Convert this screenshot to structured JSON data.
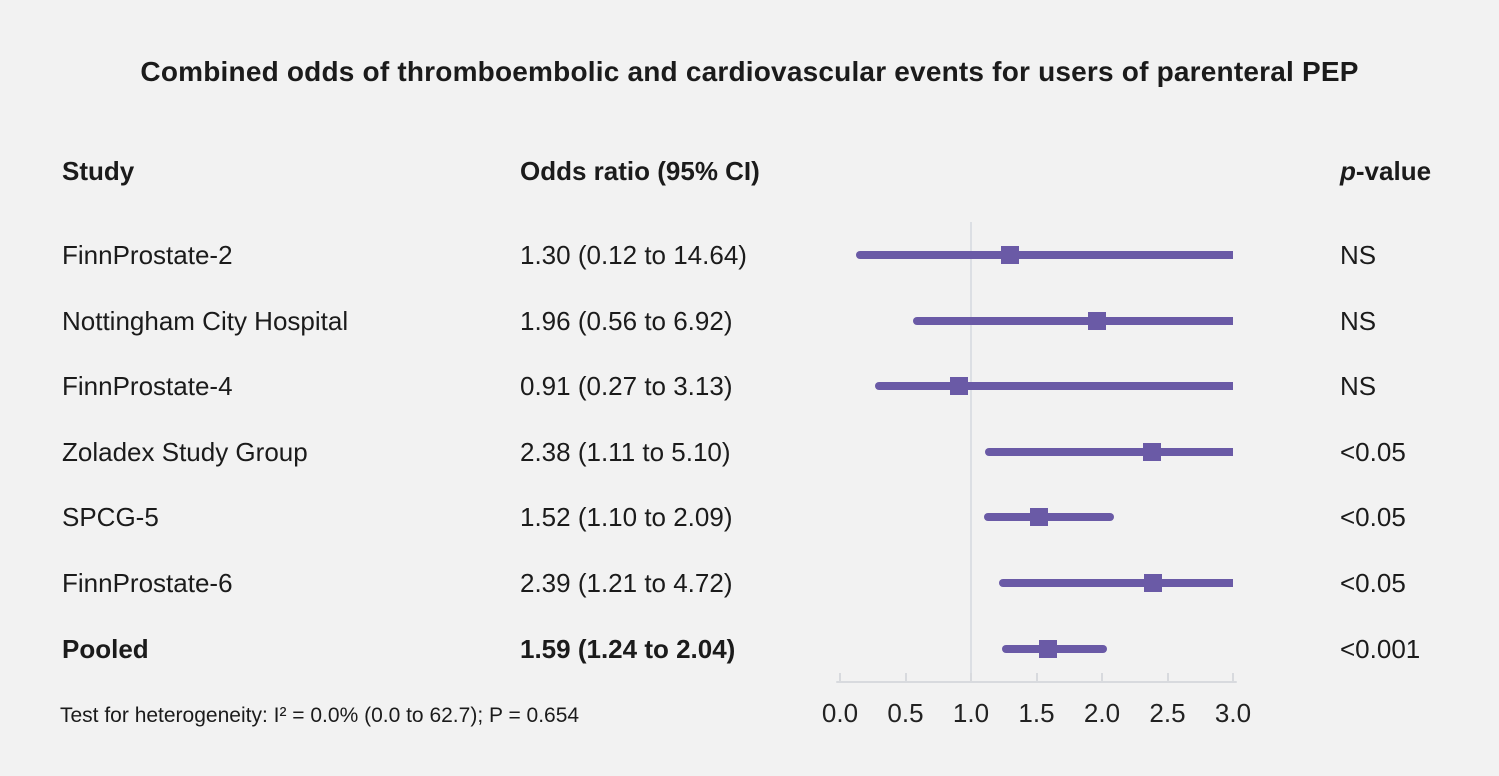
{
  "title": "Combined odds of thromboembolic and cardiovascular events for users of parenteral PEP",
  "columns": {
    "study": "Study",
    "or_ci": "Odds ratio (95% CI)",
    "p_italic": "p",
    "p_rest": "-value"
  },
  "rows": [
    {
      "study": "FinnProstate-2",
      "or_ci": "1.30 (0.12 to 14.64)",
      "p": "NS"
    },
    {
      "study": "Nottingham City Hospital",
      "or_ci": "1.96 (0.56 to 6.92)",
      "p": "NS"
    },
    {
      "study": "FinnProstate-4",
      "or_ci": "0.91 (0.27 to 3.13)",
      "p": "NS"
    },
    {
      "study": "Zoladex Study Group",
      "or_ci": "2.38 (1.11 to 5.10)",
      "p": "<0.05"
    },
    {
      "study": "SPCG-5",
      "or_ci": "1.52 (1.10 to 2.09)",
      "p": "<0.05"
    },
    {
      "study": "FinnProstate-6",
      "or_ci": "2.39 (1.21 to 4.72)",
      "p": "<0.05"
    },
    {
      "study": "Pooled",
      "or_ci": "1.59 (1.24 to 2.04)",
      "p": "<0.001"
    }
  ],
  "footnote": "Test for heterogeneity: I² = 0.0% (0.0 to 62.7); P = 0.654",
  "chart_data": {
    "type": "forest",
    "xlim": [
      0,
      3
    ],
    "x_ticks": [
      "0.0",
      "0.5",
      "1.0",
      "1.5",
      "2.0",
      "2.5",
      "3.0"
    ],
    "reference_line": 1.0,
    "series": [
      {
        "study": "FinnProstate-2",
        "or": 1.3,
        "ci_low": 0.12,
        "ci_high": 14.64,
        "p": "NS",
        "pooled": false
      },
      {
        "study": "Nottingham City Hospital",
        "or": 1.96,
        "ci_low": 0.56,
        "ci_high": 6.92,
        "p": "NS",
        "pooled": false
      },
      {
        "study": "FinnProstate-4",
        "or": 0.91,
        "ci_low": 0.27,
        "ci_high": 3.13,
        "p": "NS",
        "pooled": false
      },
      {
        "study": "Zoladex Study Group",
        "or": 2.38,
        "ci_low": 1.11,
        "ci_high": 5.1,
        "p": "<0.05",
        "pooled": false
      },
      {
        "study": "SPCG-5",
        "or": 1.52,
        "ci_low": 1.1,
        "ci_high": 2.09,
        "p": "<0.05",
        "pooled": false
      },
      {
        "study": "FinnProstate-6",
        "or": 2.39,
        "ci_low": 1.21,
        "ci_high": 4.72,
        "p": "<0.05",
        "pooled": false
      },
      {
        "study": "Pooled",
        "or": 1.59,
        "ci_low": 1.24,
        "ci_high": 2.04,
        "p": "<0.001",
        "pooled": true
      }
    ],
    "heterogeneity": {
      "I2_percent": 0.0,
      "I2_ci": [
        0.0,
        62.7
      ],
      "P": 0.654
    },
    "colors": {
      "marker": "#6a5aa6",
      "ci_line": "#6a5aa6",
      "reference_line": "#dcdfe4",
      "axis": "#d8dade",
      "background": "#f2f2f2",
      "text": "#1b1b1b"
    },
    "legend_position": "none",
    "grid": false
  }
}
